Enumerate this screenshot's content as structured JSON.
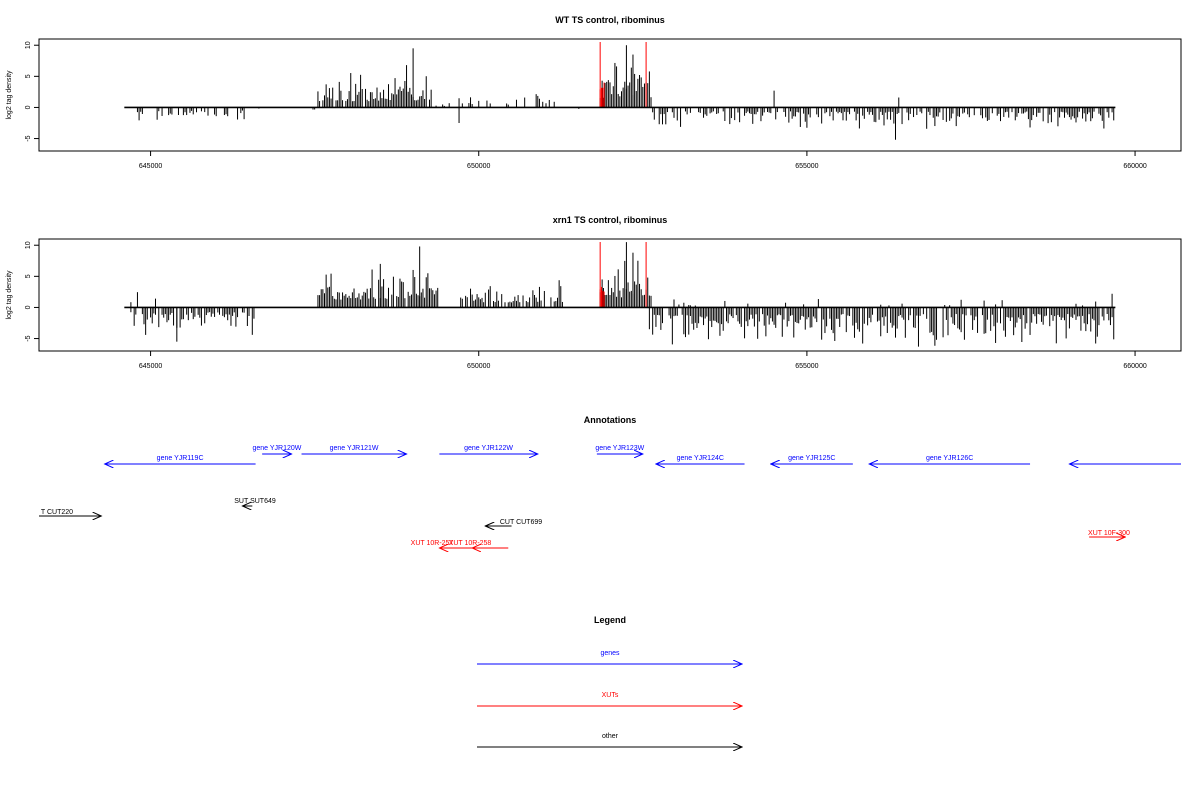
{
  "chart_data": [
    {
      "type": "bar",
      "title": "WT TS control, ribominus",
      "ylabel": "log2 tag density",
      "xlim": [
        643300,
        660700
      ],
      "ylim": [
        -7,
        11
      ],
      "yticks": [
        -5,
        0,
        5,
        10
      ],
      "xticks": [
        645000,
        650000,
        655000,
        660000
      ],
      "xtick_labels": [
        "645000",
        "650000",
        "655000",
        "660000"
      ],
      "highlight_color": "#ff0000",
      "highlight_x": [
        651850,
        652550
      ],
      "segments": [
        {
          "x0": 644800,
          "x1": 646600,
          "sign": -1,
          "amp": 2.0,
          "prob": 0.35,
          "seed": 11
        },
        {
          "x0": 646600,
          "x1": 647550,
          "sign": -1,
          "amp": 0.6,
          "prob": 0.08,
          "seed": 12
        },
        {
          "x0": 647550,
          "x1": 648500,
          "sign": 1,
          "amp": 3.8,
          "prob": 0.9,
          "seed": 13
        },
        {
          "x0": 648500,
          "x1": 649300,
          "sign": 1,
          "amp": 4.5,
          "prob": 0.9,
          "seed": 14
        },
        {
          "x0": 649300,
          "x1": 649700,
          "sign": 1,
          "amp": 0.8,
          "prob": 0.15,
          "seed": 15
        },
        {
          "x0": 649700,
          "x1": 650900,
          "sign": 1,
          "amp": 1.5,
          "prob": 0.25,
          "seed": 16
        },
        {
          "x0": 650900,
          "x1": 651200,
          "sign": 1,
          "amp": 2.5,
          "prob": 0.45,
          "seed": 17
        },
        {
          "x0": 651200,
          "x1": 651800,
          "sign": -1,
          "amp": 0.6,
          "prob": 0.05,
          "seed": 18
        },
        {
          "x0": 651850,
          "x1": 652650,
          "sign": 1,
          "amp": 6.0,
          "prob": 1.0,
          "seed": 19
        },
        {
          "x0": 652650,
          "x1": 659700,
          "sign": -1,
          "amp": 2.5,
          "prob": 0.7,
          "seed": 20
        }
      ],
      "spikes": [
        {
          "x": 649000,
          "y": 9.5
        },
        {
          "x": 648900,
          "y": 6.8
        },
        {
          "x": 651880,
          "y": 4.3
        },
        {
          "x": 652250,
          "y": 10.0
        },
        {
          "x": 652350,
          "y": 8.5
        },
        {
          "x": 654500,
          "y": 2.7
        },
        {
          "x": 656400,
          "y": 1.6
        },
        {
          "x": 656350,
          "y": -5.2
        },
        {
          "x": 649700,
          "y": -2.5
        }
      ]
    },
    {
      "type": "bar",
      "title": "xrn1 TS control, ribominus",
      "ylabel": "log2 tag density",
      "xlim": [
        643300,
        660700
      ],
      "ylim": [
        -7,
        11
      ],
      "yticks": [
        -5,
        0,
        5,
        10
      ],
      "xticks": [
        645000,
        650000,
        655000,
        660000
      ],
      "xtick_labels": [
        "645000",
        "650000",
        "655000",
        "660000"
      ],
      "highlight_color": "#ff0000",
      "highlight_x": [
        651850,
        652550
      ],
      "segments": [
        {
          "x0": 644700,
          "x1": 646600,
          "sign": -1,
          "amp": 3.0,
          "prob": 0.8,
          "seed": 31
        },
        {
          "x0": 644700,
          "x1": 645100,
          "sign": 1,
          "amp": 2.0,
          "prob": 0.3,
          "seed": 32
        },
        {
          "x0": 647550,
          "x1": 648400,
          "sign": 1,
          "amp": 5.0,
          "prob": 0.95,
          "seed": 33
        },
        {
          "x0": 648400,
          "x1": 649400,
          "sign": 1,
          "amp": 5.5,
          "prob": 0.95,
          "seed": 34
        },
        {
          "x0": 649400,
          "x1": 649800,
          "sign": 1,
          "amp": 1.2,
          "prob": 0.2,
          "seed": 35
        },
        {
          "x0": 649800,
          "x1": 651300,
          "sign": 1,
          "amp": 3.2,
          "prob": 0.75,
          "seed": 36
        },
        {
          "x0": 651850,
          "x1": 652650,
          "sign": 1,
          "amp": 6.5,
          "prob": 1.0,
          "seed": 37
        },
        {
          "x0": 652650,
          "x1": 659700,
          "sign": -1,
          "amp": 4.2,
          "prob": 0.85,
          "seed": 38
        },
        {
          "x0": 652650,
          "x1": 659700,
          "sign": 1,
          "amp": 1.2,
          "prob": 0.08,
          "seed": 39
        }
      ],
      "spikes": [
        {
          "x": 649100,
          "y": 9.8
        },
        {
          "x": 648500,
          "y": 7.0
        },
        {
          "x": 652250,
          "y": 10.5
        },
        {
          "x": 652350,
          "y": 8.8
        },
        {
          "x": 651880,
          "y": 4.5
        },
        {
          "x": 659650,
          "y": 2.2
        },
        {
          "x": 655850,
          "y": -5.8
        },
        {
          "x": 656700,
          "y": -6.3
        },
        {
          "x": 645400,
          "y": -5.5
        },
        {
          "x": 652600,
          "y": -3.5
        }
      ]
    }
  ],
  "annotations": {
    "title": "Annotations",
    "items": [
      {
        "label": "gene YJR119C",
        "x0": 644300,
        "x1": 646600,
        "dir": "left",
        "row": 0,
        "color": "#0000ff"
      },
      {
        "label": "gene YJR120W",
        "x0": 646700,
        "x1": 647150,
        "dir": "right",
        "row": 1,
        "color": "#0000ff"
      },
      {
        "label": "gene YJR121W",
        "x0": 647300,
        "x1": 648900,
        "dir": "right",
        "row": 1,
        "color": "#0000ff"
      },
      {
        "label": "gene YJR122W",
        "x0": 649400,
        "x1": 650900,
        "dir": "right",
        "row": 1,
        "color": "#0000ff"
      },
      {
        "label": "gene YJR123W",
        "x0": 651800,
        "x1": 652500,
        "dir": "right",
        "row": 1,
        "color": "#0000ff"
      },
      {
        "label": "gene YJR124C",
        "x0": 652700,
        "x1": 654050,
        "dir": "left",
        "row": 0,
        "color": "#0000ff"
      },
      {
        "label": "gene YJR125C",
        "x0": 654450,
        "x1": 655700,
        "dir": "left",
        "row": 0,
        "color": "#0000ff"
      },
      {
        "label": "gene YJR126C",
        "x0": 655950,
        "x1": 658400,
        "dir": "left",
        "row": 0,
        "color": "#0000ff"
      },
      {
        "label": "",
        "x0": 659000,
        "x1": 660700,
        "dir": "left",
        "row": 0,
        "color": "#0000ff"
      },
      {
        "label": "SUT SUT649",
        "x0": 646400,
        "x1": 646550,
        "dir": "left",
        "row": 2,
        "color": "#000000"
      },
      {
        "label": "T CUT220",
        "x0": 643300,
        "x1": 644250,
        "dir": "right",
        "row": 3,
        "color": "#000000"
      },
      {
        "label": "CUT CUT699",
        "x0": 650100,
        "x1": 650500,
        "dir": "left",
        "row": 4,
        "color": "#000000"
      },
      {
        "label": "XUT 10R-257",
        "x0": 649400,
        "x1": 650000,
        "dir": "left",
        "row": 5,
        "color": "#ff0000"
      },
      {
        "label": "XUT 10R-258",
        "x0": 649900,
        "x1": 650450,
        "dir": "left",
        "row": 5,
        "color": "#ff0000"
      },
      {
        "label": "XUT 10F-300",
        "x0": 659300,
        "x1": 659850,
        "dir": "right",
        "row": 6,
        "color": "#ff0000"
      }
    ]
  },
  "legend": {
    "title": "Legend",
    "items": [
      {
        "label": "genes",
        "color": "#0000ff"
      },
      {
        "label": "XUTs",
        "color": "#ff0000"
      },
      {
        "label": "other",
        "color": "#000000"
      }
    ]
  }
}
